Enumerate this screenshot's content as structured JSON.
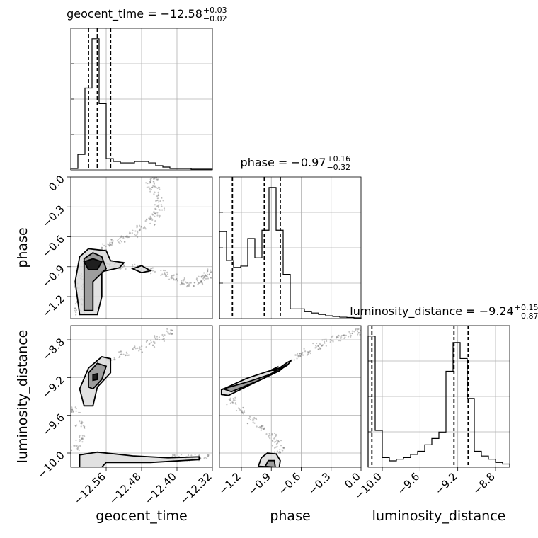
{
  "chart_data": {
    "type": "corner",
    "parameters": [
      {
        "name": "geocent_time",
        "title_text": "geocent_time = −12.58",
        "title_plus": "+0.03",
        "title_minus": "−0.02",
        "axis_label": "geocent_time",
        "range": [
          -12.64,
          -12.32
        ],
        "ticks": [
          -12.56,
          -12.48,
          -12.4,
          -12.32
        ],
        "tick_labels": [
          "−12.56",
          "−12.48",
          "−12.40",
          "−12.32"
        ],
        "quantiles": [
          -12.6,
          -12.58,
          -12.55
        ],
        "hist_edges": [
          -12.64,
          -12.624,
          -12.608,
          -12.592,
          -12.576,
          -12.56,
          -12.544,
          -12.528,
          -12.512,
          -12.496,
          -12.48,
          -12.464,
          -12.448,
          -12.432,
          -12.416,
          -12.4,
          -12.384,
          -12.368,
          -12.352,
          -12.336,
          -12.32
        ],
        "hist_values": [
          0.01,
          0.11,
          0.58,
          0.93,
          0.47,
          0.08,
          0.06,
          0.05,
          0.05,
          0.06,
          0.06,
          0.05,
          0.03,
          0.02,
          0.01,
          0.01,
          0.01,
          0.005,
          0.005,
          0.005
        ]
      },
      {
        "name": "phase",
        "title_text": "phase = −0.97",
        "title_plus": "+0.16",
        "title_minus": "−0.32",
        "axis_label": "phase",
        "range": [
          -1.42,
          0.0
        ],
        "ticks": [
          -1.2,
          -0.9,
          -0.6,
          -0.3,
          0.0
        ],
        "tick_labels": [
          "−1.2",
          "−0.9",
          "−0.6",
          "−0.3",
          "0.0"
        ],
        "y_tick_labels": [
          "0.0",
          "−0.3",
          "−0.6",
          "−0.9",
          "−1.2"
        ],
        "quantiles": [
          -1.29,
          -0.97,
          -0.81
        ],
        "hist_edges": [
          -1.42,
          -1.349,
          -1.278,
          -1.207,
          -1.136,
          -1.065,
          -0.994,
          -0.923,
          -0.852,
          -0.781,
          -0.71,
          -0.639,
          -0.568,
          -0.497,
          -0.426,
          -0.355,
          -0.284,
          -0.213,
          -0.142,
          -0.071,
          0.0
        ],
        "hist_values": [
          0.63,
          0.42,
          0.37,
          0.38,
          0.58,
          0.44,
          0.64,
          0.95,
          0.64,
          0.32,
          0.07,
          0.07,
          0.05,
          0.04,
          0.03,
          0.02,
          0.015,
          0.01,
          0.008,
          0.005
        ]
      },
      {
        "name": "luminosity_distance",
        "title_text": "luminosity_distance = −9.24",
        "title_plus": "+0.15",
        "title_minus": "−0.87",
        "axis_label": "luminosity_distance",
        "range": [
          -10.15,
          -8.65
        ],
        "ticks": [
          -10.0,
          -9.6,
          -9.2,
          -8.8
        ],
        "tick_labels": [
          "−10.0",
          "−9.6",
          "−9.2",
          "−8.8"
        ],
        "quantiles": [
          -10.11,
          -9.24,
          -9.09
        ],
        "hist_edges": [
          -10.15,
          -10.075,
          -10.0,
          -9.925,
          -9.85,
          -9.775,
          -9.7,
          -9.625,
          -9.55,
          -9.475,
          -9.4,
          -9.325,
          -9.25,
          -9.175,
          -9.1,
          -9.025,
          -8.95,
          -8.875,
          -8.8,
          -8.725,
          -8.65
        ],
        "hist_values": [
          0.82,
          0.23,
          0.06,
          0.04,
          0.05,
          0.06,
          0.08,
          0.1,
          0.14,
          0.18,
          0.22,
          0.6,
          0.78,
          0.68,
          0.43,
          0.1,
          0.07,
          0.05,
          0.03,
          0.02
        ]
      }
    ],
    "pairs": [
      {
        "x": "geocent_time",
        "y": "phase",
        "contours": [
          [
            [
              -12.62,
              -1.38
            ],
            [
              -12.63,
              -1.05
            ],
            [
              -12.62,
              -0.8
            ],
            [
              -12.6,
              -0.72
            ],
            [
              -12.56,
              -0.74
            ],
            [
              -12.55,
              -0.84
            ],
            [
              -12.52,
              -0.86
            ],
            [
              -12.53,
              -0.91
            ],
            [
              -12.57,
              -0.95
            ],
            [
              -12.57,
              -1.2
            ],
            [
              -12.58,
              -1.38
            ]
          ],
          [
            [
              -12.61,
              -1.34
            ],
            [
              -12.61,
              -1.05
            ],
            [
              -12.61,
              -0.82
            ],
            [
              -12.59,
              -0.76
            ],
            [
              -12.57,
              -0.8
            ],
            [
              -12.56,
              -0.92
            ],
            [
              -12.59,
              -1.05
            ],
            [
              -12.59,
              -1.34
            ]
          ],
          [
            [
              -12.6,
              -0.93
            ],
            [
              -12.61,
              -0.85
            ],
            [
              -12.59,
              -0.82
            ],
            [
              -12.57,
              -0.85
            ],
            [
              -12.58,
              -0.93
            ]
          ],
          [
            [
              -12.5,
              -0.92
            ],
            [
              -12.48,
              -0.89
            ],
            [
              -12.46,
              -0.94
            ],
            [
              -12.48,
              -0.96
            ]
          ]
        ],
        "samples": [
          [
            -12.6,
            -0.8
          ],
          [
            -12.58,
            -0.75
          ],
          [
            -12.56,
            -0.7
          ],
          [
            -12.54,
            -0.66
          ],
          [
            -12.52,
            -0.62
          ],
          [
            -12.5,
            -0.57
          ],
          [
            -12.48,
            -0.52
          ],
          [
            -12.46,
            -0.45
          ],
          [
            -12.45,
            -0.38
          ],
          [
            -12.44,
            -0.3
          ],
          [
            -12.44,
            -0.22
          ],
          [
            -12.45,
            -0.14
          ],
          [
            -12.46,
            -0.07
          ],
          [
            -12.45,
            -0.02
          ],
          [
            -12.55,
            -0.89
          ],
          [
            -12.52,
            -0.89
          ],
          [
            -12.49,
            -0.91
          ],
          [
            -12.46,
            -0.94
          ],
          [
            -12.43,
            -0.97
          ],
          [
            -12.41,
            -1.01
          ],
          [
            -12.39,
            -1.05
          ],
          [
            -12.37,
            -1.07
          ],
          [
            -12.35,
            -1.05
          ],
          [
            -12.34,
            -1.02
          ],
          [
            -12.33,
            -0.99
          ],
          [
            -12.32,
            -0.96
          ],
          [
            -12.62,
            -1.1
          ],
          [
            -12.62,
            -1.25
          ],
          [
            -12.62,
            -1.35
          ],
          [
            -12.61,
            -1.0
          ]
        ]
      },
      {
        "x": "geocent_time",
        "y": "luminosity_distance",
        "contours": [
          [
            [
              -12.61,
              -9.5
            ],
            [
              -12.62,
              -9.32
            ],
            [
              -12.6,
              -9.1
            ],
            [
              -12.57,
              -8.98
            ],
            [
              -12.55,
              -9.0
            ],
            [
              -12.55,
              -9.15
            ],
            [
              -12.58,
              -9.3
            ],
            [
              -12.59,
              -9.5
            ]
          ],
          [
            [
              -12.6,
              -9.3
            ],
            [
              -12.6,
              -9.15
            ],
            [
              -12.58,
              -9.05
            ],
            [
              -12.56,
              -9.08
            ],
            [
              -12.57,
              -9.22
            ],
            [
              -12.59,
              -9.32
            ]
          ],
          [
            [
              -12.59,
              -9.23
            ],
            [
              -12.59,
              -9.17
            ],
            [
              -12.58,
              -9.16
            ],
            [
              -12.58,
              -9.22
            ]
          ],
          [
            [
              -12.62,
              -10.15
            ],
            [
              -12.62,
              -10.02
            ],
            [
              -12.58,
              -9.99
            ],
            [
              -12.5,
              -10.03
            ],
            [
              -12.42,
              -10.05
            ],
            [
              -12.35,
              -10.04
            ],
            [
              -12.35,
              -10.07
            ],
            [
              -12.46,
              -10.1
            ],
            [
              -12.56,
              -10.1
            ],
            [
              -12.57,
              -10.15
            ]
          ]
        ],
        "samples": [
          [
            -12.55,
            -9.02
          ],
          [
            -12.52,
            -8.96
          ],
          [
            -12.49,
            -8.9
          ],
          [
            -12.46,
            -8.84
          ],
          [
            -12.44,
            -8.78
          ],
          [
            -12.42,
            -8.72
          ],
          [
            -12.63,
            -9.55
          ],
          [
            -12.62,
            -9.7
          ],
          [
            -12.62,
            -9.85
          ],
          [
            -12.63,
            -9.95
          ],
          [
            -12.4,
            -10.05
          ],
          [
            -12.37,
            -10.05
          ],
          [
            -12.34,
            -10.04
          ]
        ]
      },
      {
        "x": "phase",
        "y": "luminosity_distance",
        "contours": [
          [
            [
              -1.4,
              -9.33
            ],
            [
              -1.15,
              -9.21
            ],
            [
              -0.95,
              -9.14
            ],
            [
              -0.82,
              -9.1
            ],
            [
              -0.74,
              -9.04
            ],
            [
              -0.7,
              -9.02
            ],
            [
              -0.74,
              -9.07
            ],
            [
              -0.9,
              -9.17
            ],
            [
              -1.12,
              -9.28
            ],
            [
              -1.33,
              -9.39
            ],
            [
              -1.4,
              -9.38
            ]
          ],
          [
            [
              -1.38,
              -9.32
            ],
            [
              -1.12,
              -9.24
            ],
            [
              -0.92,
              -9.17
            ],
            [
              -0.8,
              -9.1
            ],
            [
              -0.74,
              -9.06
            ],
            [
              -0.82,
              -9.13
            ],
            [
              -1.0,
              -9.22
            ],
            [
              -1.3,
              -9.35
            ]
          ],
          [
            [
              -0.9,
              -9.12
            ],
            [
              -0.84,
              -9.09
            ],
            [
              -0.86,
              -9.13
            ]
          ],
          [
            [
              -1.03,
              -10.14
            ],
            [
              -1.0,
              -10.05
            ],
            [
              -0.94,
              -10.0
            ],
            [
              -0.85,
              -10.01
            ],
            [
              -0.81,
              -10.08
            ],
            [
              -0.82,
              -10.15
            ]
          ],
          [
            [
              -0.96,
              -10.14
            ],
            [
              -0.93,
              -10.08
            ],
            [
              -0.87,
              -10.08
            ],
            [
              -0.86,
              -10.15
            ]
          ]
        ],
        "samples": [
          [
            -0.65,
            -8.98
          ],
          [
            -0.55,
            -8.93
          ],
          [
            -0.45,
            -8.87
          ],
          [
            -0.35,
            -8.83
          ],
          [
            -0.25,
            -8.79
          ],
          [
            -0.15,
            -8.75
          ],
          [
            -0.05,
            -8.71
          ],
          [
            -1.3,
            -9.45
          ],
          [
            -1.2,
            -9.55
          ],
          [
            -1.1,
            -9.65
          ],
          [
            -1.0,
            -9.75
          ],
          [
            -0.9,
            -9.82
          ],
          [
            -0.84,
            -9.9
          ],
          [
            -0.82,
            -9.97
          ]
        ]
      }
    ]
  }
}
